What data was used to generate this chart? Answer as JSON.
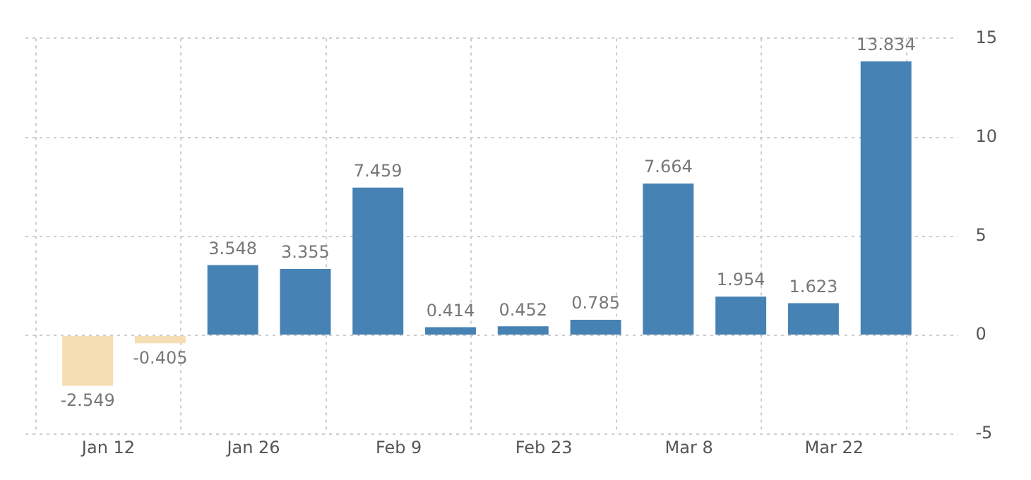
{
  "chart_data": {
    "type": "bar",
    "x": [
      "--01-10",
      "--01-17",
      "--01-24",
      "--01-31",
      "--02-07",
      "--02-14",
      "--02-21",
      "--02-28",
      "--03-06",
      "--03-13",
      "--03-20",
      "--03-27"
    ],
    "values": [
      -2.549,
      -0.405,
      3.548,
      3.355,
      7.459,
      0.414,
      0.452,
      0.785,
      7.664,
      1.954,
      1.623,
      13.834
    ],
    "colors": [
      "#f5deb3",
      "#f5deb3",
      "#4682b4",
      "#4682b4",
      "#4682b4",
      "#4682b4",
      "#4682b4",
      "#4682b4",
      "#4682b4",
      "#4682b4",
      "#4682b4",
      "#4682b4"
    ],
    "xlim": [
      "--01-04",
      "--04-03"
    ],
    "xticks": [
      {
        "value": "--01-12",
        "label": "Jan 12"
      },
      {
        "value": "--01-26",
        "label": "Jan 26"
      },
      {
        "value": "--02-09",
        "label": "Feb 9"
      },
      {
        "value": "--02-23",
        "label": "Feb 23"
      },
      {
        "value": "--03-08",
        "label": "Mar 8"
      },
      {
        "value": "--03-22",
        "label": "Mar 22"
      }
    ],
    "ylim": [
      -5,
      15
    ],
    "yticks": [
      -5,
      0,
      5,
      10,
      15
    ],
    "grid": true,
    "data_labels": true
  }
}
